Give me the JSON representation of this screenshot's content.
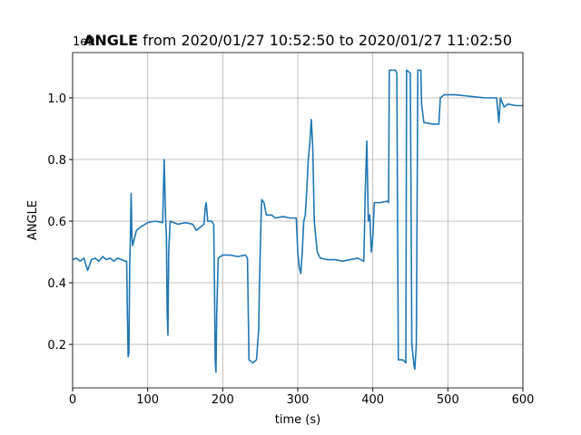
{
  "chart_data": {
    "type": "line",
    "title": {
      "bold": "ANGLE",
      "rest": " from 2020/01/27 10:52:50 to 2020/01/27 11:02:50"
    },
    "offset_text": "1e9",
    "xlabel": "time (s)",
    "ylabel": "ANGLE",
    "xlim": [
      0,
      600
    ],
    "ylim": [
      0.059,
      1.147
    ],
    "xticks": [
      0,
      100,
      200,
      300,
      400,
      500,
      600
    ],
    "yticks": [
      0.2,
      0.4,
      0.6,
      0.8,
      {
        "value": 1,
        "label": "1.0"
      }
    ],
    "grid": true,
    "x": [
      0,
      5,
      10,
      15,
      20,
      25,
      30,
      35,
      40,
      45,
      50,
      55,
      60,
      65,
      70,
      72,
      73,
      74,
      75,
      76,
      77,
      78,
      79,
      80,
      85,
      90,
      100,
      110,
      120,
      121,
      122,
      123,
      124,
      125,
      126,
      127,
      128,
      130,
      140,
      150,
      160,
      165,
      175,
      177,
      178,
      180,
      185,
      188,
      189,
      190,
      191,
      192,
      194,
      200,
      210,
      220,
      230,
      233,
      235,
      240,
      245,
      248,
      249,
      251,
      252,
      255,
      258,
      265,
      270,
      280,
      290,
      298,
      300,
      302,
      304,
      306,
      308,
      310,
      312,
      314,
      316,
      318,
      320,
      322,
      324,
      326,
      330,
      340,
      350,
      360,
      370,
      380,
      388,
      390,
      392,
      394,
      396,
      398,
      400,
      402,
      410,
      420,
      421,
      422,
      430,
      432,
      434,
      440,
      444,
      445,
      450,
      452,
      455,
      456,
      458,
      460,
      464,
      465,
      468,
      480,
      488,
      490,
      495,
      510,
      530,
      550,
      565,
      568,
      570,
      575,
      580,
      590,
      600
    ],
    "series": [
      {
        "name": "ANGLE",
        "color": "#1f77b4",
        "values": [
          0.475,
          0.48,
          0.47,
          0.48,
          0.44,
          0.475,
          0.48,
          0.47,
          0.485,
          0.475,
          0.48,
          0.47,
          0.48,
          0.475,
          0.47,
          0.47,
          0.3,
          0.16,
          0.17,
          0.45,
          0.55,
          0.69,
          0.55,
          0.52,
          0.57,
          0.58,
          0.595,
          0.6,
          0.595,
          0.7,
          0.8,
          0.7,
          0.6,
          0.55,
          0.3,
          0.23,
          0.5,
          0.6,
          0.59,
          0.595,
          0.59,
          0.57,
          0.59,
          0.65,
          0.66,
          0.6,
          0.6,
          0.59,
          0.4,
          0.15,
          0.11,
          0.3,
          0.48,
          0.49,
          0.49,
          0.485,
          0.49,
          0.48,
          0.15,
          0.14,
          0.15,
          0.25,
          0.4,
          0.6,
          0.67,
          0.66,
          0.62,
          0.62,
          0.61,
          0.615,
          0.61,
          0.61,
          0.5,
          0.45,
          0.43,
          0.5,
          0.6,
          0.62,
          0.7,
          0.8,
          0.85,
          0.93,
          0.84,
          0.6,
          0.55,
          0.5,
          0.48,
          0.475,
          0.475,
          0.47,
          0.475,
          0.48,
          0.47,
          0.7,
          0.86,
          0.6,
          0.62,
          0.5,
          0.55,
          0.66,
          0.66,
          0.665,
          0.66,
          1.09,
          1.09,
          1.08,
          0.15,
          0.15,
          0.14,
          1.09,
          1.08,
          0.2,
          0.13,
          0.12,
          0.2,
          1.09,
          1.09,
          0.98,
          0.92,
          0.915,
          0.915,
          1.0,
          1.01,
          1.01,
          1.005,
          1.0,
          1.0,
          0.92,
          1.0,
          0.97,
          0.98,
          0.975,
          0.975
        ]
      }
    ]
  }
}
